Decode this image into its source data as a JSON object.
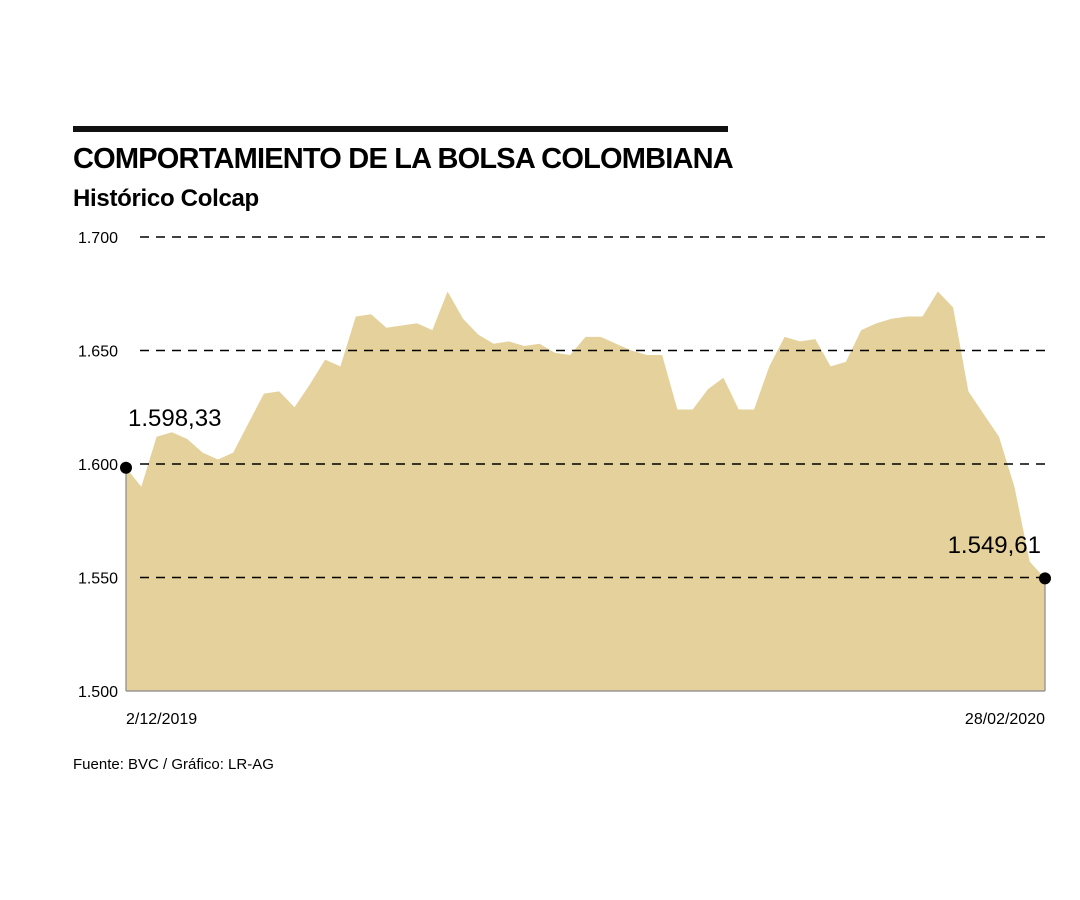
{
  "chart_data": {
    "type": "area",
    "title": "COMPORTAMIENTO DE LA BOLSA COLOMBIANA",
    "subtitle": "Histórico Colcap",
    "xlabel": "",
    "ylabel": "",
    "ylim": [
      1500,
      1700
    ],
    "y_ticks": [
      1500,
      1550,
      1600,
      1650,
      1700
    ],
    "y_tick_labels": [
      "1.500",
      "1.550",
      "1.600",
      "1.650",
      "1.700"
    ],
    "x_labels": {
      "start": "2/12/2019",
      "end": "28/02/2020"
    },
    "grid": "horizontal-dashed",
    "legend": "none",
    "fill_color": "#e5d19b",
    "values": [
      1598.33,
      1590,
      1612,
      1614,
      1611,
      1605,
      1602,
      1605,
      1618,
      1631,
      1632,
      1625,
      1635,
      1646,
      1643,
      1665,
      1666,
      1660,
      1661,
      1662,
      1659,
      1676,
      1664,
      1657,
      1653,
      1654,
      1652,
      1653,
      1649,
      1648,
      1656,
      1656,
      1653,
      1650,
      1648,
      1648,
      1624,
      1624,
      1633,
      1638,
      1624,
      1624,
      1643,
      1656,
      1654,
      1655,
      1643,
      1645,
      1659,
      1662,
      1664,
      1665,
      1665,
      1676,
      1669,
      1632,
      1622,
      1612,
      1590,
      1557,
      1549.61
    ],
    "annotations": [
      {
        "label": "1.598,33",
        "value": 1598.33,
        "position": "start"
      },
      {
        "label": "1.549,61",
        "value": 1549.61,
        "position": "end"
      }
    ]
  },
  "source": "Fuente: BVC / Gráfico: LR-AG"
}
